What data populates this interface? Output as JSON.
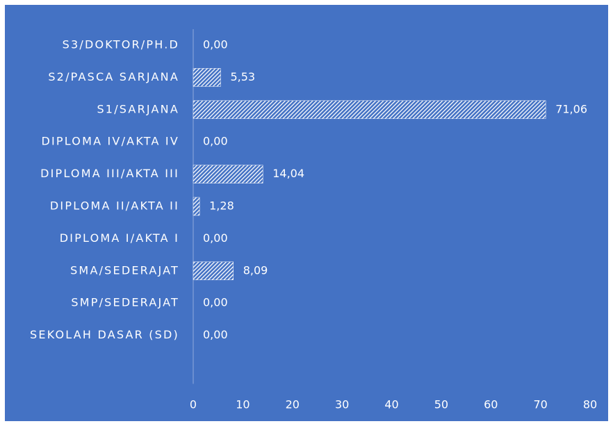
{
  "chart_data": {
    "type": "hbar",
    "categories": [
      "S3/DOKTOR/PH.D",
      "S2/PASCA SARJANA",
      "S1/SARJANA",
      "DIPLOMA IV/AKTA IV",
      "DIPLOMA III/AKTA III",
      "DIPLOMA II/AKTA II",
      "DIPLOMA I/AKTA I",
      "SMA/SEDERAJAT",
      "SMP/SEDERAJAT",
      "SEKOLAH DASAR (SD)"
    ],
    "values": [
      0,
      5.53,
      71.06,
      0,
      14.04,
      1.28,
      0,
      8.09,
      0,
      0
    ],
    "value_labels": [
      "0,00",
      "5,53",
      "71,06",
      "0,00",
      "14,04",
      "1,28",
      "0,00",
      "8,09",
      "0,00",
      "0,00"
    ],
    "color": "#ffffff",
    "background": "#4472c4",
    "xlim": [
      0,
      80
    ],
    "xticks": [
      0,
      10,
      20,
      30,
      40,
      50,
      60,
      70,
      80
    ],
    "grid": false
  }
}
